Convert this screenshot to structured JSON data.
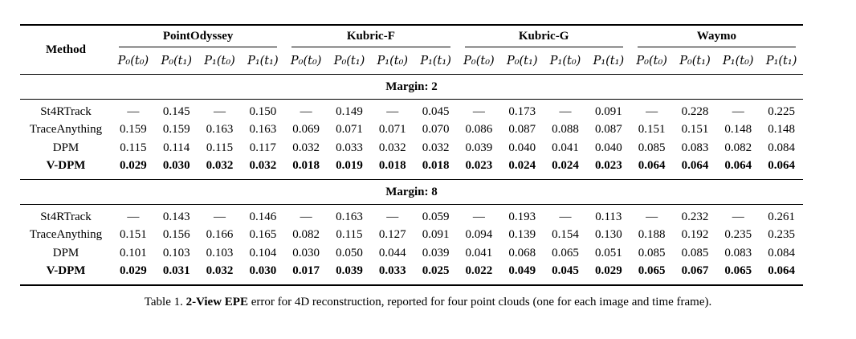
{
  "table": {
    "method_header": "Method",
    "groups": [
      {
        "name": "PointOdyssey"
      },
      {
        "name": "Kubric-F"
      },
      {
        "name": "Kubric-G"
      },
      {
        "name": "Waymo"
      }
    ],
    "sub_headers": [
      "P₀(t₀)",
      "P₀(t₁)",
      "P₁(t₀)",
      "P₁(t₁)"
    ],
    "sections": [
      {
        "label": "Margin: 2",
        "rows": [
          {
            "method": "St4RTrack",
            "bold": false,
            "values": [
              "—",
              "0.145",
              "—",
              "0.150",
              "—",
              "0.149",
              "—",
              "0.045",
              "—",
              "0.173",
              "—",
              "0.091",
              "—",
              "0.228",
              "—",
              "0.225"
            ]
          },
          {
            "method": "TraceAnything",
            "bold": false,
            "values": [
              "0.159",
              "0.159",
              "0.163",
              "0.163",
              "0.069",
              "0.071",
              "0.071",
              "0.070",
              "0.086",
              "0.087",
              "0.088",
              "0.087",
              "0.151",
              "0.151",
              "0.148",
              "0.148"
            ]
          },
          {
            "method": "DPM",
            "bold": false,
            "values": [
              "0.115",
              "0.114",
              "0.115",
              "0.117",
              "0.032",
              "0.033",
              "0.032",
              "0.032",
              "0.039",
              "0.040",
              "0.041",
              "0.040",
              "0.085",
              "0.083",
              "0.082",
              "0.084"
            ]
          },
          {
            "method": "V-DPM",
            "bold": true,
            "values": [
              "0.029",
              "0.030",
              "0.032",
              "0.032",
              "0.018",
              "0.019",
              "0.018",
              "0.018",
              "0.023",
              "0.024",
              "0.024",
              "0.023",
              "0.064",
              "0.064",
              "0.064",
              "0.064"
            ]
          }
        ]
      },
      {
        "label": "Margin: 8",
        "rows": [
          {
            "method": "St4RTrack",
            "bold": false,
            "values": [
              "—",
              "0.143",
              "—",
              "0.146",
              "—",
              "0.163",
              "—",
              "0.059",
              "—",
              "0.193",
              "—",
              "0.113",
              "—",
              "0.232",
              "—",
              "0.261"
            ]
          },
          {
            "method": "TraceAnything",
            "bold": false,
            "values": [
              "0.151",
              "0.156",
              "0.166",
              "0.165",
              "0.082",
              "0.115",
              "0.127",
              "0.091",
              "0.094",
              "0.139",
              "0.154",
              "0.130",
              "0.188",
              "0.192",
              "0.235",
              "0.235"
            ]
          },
          {
            "method": "DPM",
            "bold": false,
            "values": [
              "0.101",
              "0.103",
              "0.103",
              "0.104",
              "0.030",
              "0.050",
              "0.044",
              "0.039",
              "0.041",
              "0.068",
              "0.065",
              "0.051",
              "0.085",
              "0.085",
              "0.083",
              "0.084"
            ]
          },
          {
            "method": "V-DPM",
            "bold": true,
            "values": [
              "0.029",
              "0.031",
              "0.032",
              "0.030",
              "0.017",
              "0.039",
              "0.033",
              "0.025",
              "0.022",
              "0.049",
              "0.045",
              "0.029",
              "0.065",
              "0.067",
              "0.065",
              "0.064"
            ]
          }
        ]
      }
    ]
  },
  "caption": {
    "prefix": "Table 1. ",
    "bold_part": "2-View EPE",
    "suffix": " error for 4D reconstruction, reported for four point clouds (one for each image and time frame)."
  }
}
